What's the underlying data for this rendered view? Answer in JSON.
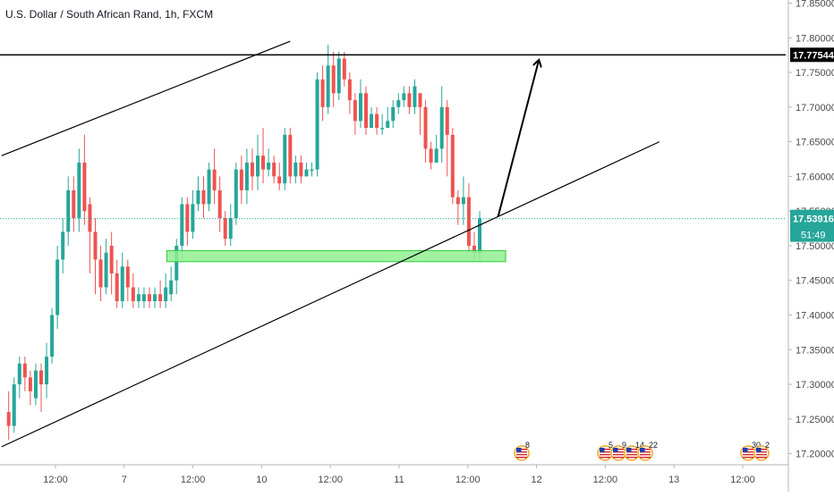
{
  "symbol": {
    "title": "U.S. Dollar / South African Rand, 1h, FXCM"
  },
  "colors": {
    "up": "#26a69a",
    "down": "#ef5350",
    "background": "#ffffff",
    "axis_text": "#4a4a4a",
    "trendline": "#000000",
    "zone_fill": "#90ee90",
    "zone_stroke": "#2ecc40",
    "price_line": "#26a69a",
    "resistance_label_bg": "#000000"
  },
  "price_axis": {
    "ticks": [
      "17.85000",
      "17.80000",
      "17.75000",
      "17.70000",
      "17.65000",
      "17.60000",
      "17.55000",
      "17.50000",
      "17.45000",
      "17.40000",
      "17.35000",
      "17.30000",
      "17.25000",
      "17.20000"
    ]
  },
  "time_axis": {
    "ticks": [
      "12:00",
      "7",
      "12:00",
      "10",
      "12:00",
      "11",
      "12:00",
      "12",
      "12:00",
      "13",
      "12:00"
    ]
  },
  "labels": {
    "resistance_price": "17.77544",
    "last_price": "17.53916",
    "countdown": "51:49"
  },
  "event_markers": [
    {
      "label": "8",
      "icon": "us-flag-event-icon"
    },
    {
      "label": "5",
      "icon": "us-flag-event-icon"
    },
    {
      "label": "9",
      "icon": "us-flag-event-icon"
    },
    {
      "label": "14",
      "icon": "us-flag-event-icon"
    },
    {
      "label": "22",
      "icon": "us-flag-event-icon"
    },
    {
      "label": "30",
      "icon": "us-flag-event-icon"
    },
    {
      "label": "2",
      "icon": "us-flag-event-icon"
    }
  ],
  "chart_data": {
    "type": "candlestick",
    "title": "U.S. Dollar / South African Rand, 1h, FXCM",
    "ylim": [
      17.19,
      17.855
    ],
    "y_scale": "linear",
    "grid": false,
    "legend": "none",
    "candles": [
      [
        17.26,
        17.24,
        17.29,
        17.22
      ],
      [
        17.24,
        17.3,
        17.31,
        17.23
      ],
      [
        17.3,
        17.33,
        17.34,
        17.28
      ],
      [
        17.33,
        17.31,
        17.34,
        17.29
      ],
      [
        17.31,
        17.29,
        17.32,
        17.27
      ],
      [
        17.28,
        17.32,
        17.33,
        17.27
      ],
      [
        17.32,
        17.3,
        17.33,
        17.26
      ],
      [
        17.3,
        17.34,
        17.36,
        17.28
      ],
      [
        17.34,
        17.4,
        17.41,
        17.33
      ],
      [
        17.4,
        17.48,
        17.5,
        17.38
      ],
      [
        17.48,
        17.52,
        17.54,
        17.46
      ],
      [
        17.52,
        17.58,
        17.6,
        17.5
      ],
      [
        17.58,
        17.54,
        17.6,
        17.52
      ],
      [
        17.54,
        17.62,
        17.64,
        17.52
      ],
      [
        17.62,
        17.55,
        17.66,
        17.53
      ],
      [
        17.56,
        17.52,
        17.57,
        17.46
      ],
      [
        17.52,
        17.48,
        17.54,
        17.43
      ],
      [
        17.48,
        17.44,
        17.5,
        17.42
      ],
      [
        17.44,
        17.49,
        17.51,
        17.43
      ],
      [
        17.5,
        17.46,
        17.52,
        17.43
      ],
      [
        17.46,
        17.42,
        17.48,
        17.41
      ],
      [
        17.42,
        17.47,
        17.49,
        17.41
      ],
      [
        17.47,
        17.44,
        17.48,
        17.42
      ],
      [
        17.44,
        17.42,
        17.46,
        17.41
      ],
      [
        17.42,
        17.43,
        17.44,
        17.41
      ],
      [
        17.42,
        17.43,
        17.44,
        17.41
      ],
      [
        17.43,
        17.42,
        17.44,
        17.41
      ],
      [
        17.42,
        17.43,
        17.44,
        17.41
      ],
      [
        17.43,
        17.42,
        17.45,
        17.41
      ],
      [
        17.42,
        17.44,
        17.46,
        17.41
      ],
      [
        17.43,
        17.45,
        17.47,
        17.42
      ],
      [
        17.45,
        17.5,
        17.51,
        17.43
      ],
      [
        17.5,
        17.56,
        17.57,
        17.48
      ],
      [
        17.56,
        17.52,
        17.57,
        17.5
      ],
      [
        17.52,
        17.56,
        17.58,
        17.51
      ],
      [
        17.56,
        17.58,
        17.6,
        17.55
      ],
      [
        17.58,
        17.56,
        17.6,
        17.54
      ],
      [
        17.56,
        17.61,
        17.62,
        17.55
      ],
      [
        17.61,
        17.58,
        17.64,
        17.56
      ],
      [
        17.58,
        17.54,
        17.6,
        17.52
      ],
      [
        17.54,
        17.51,
        17.55,
        17.5
      ],
      [
        17.51,
        17.54,
        17.56,
        17.5
      ],
      [
        17.54,
        17.61,
        17.62,
        17.53
      ],
      [
        17.61,
        17.58,
        17.63,
        17.56
      ],
      [
        17.58,
        17.62,
        17.64,
        17.56
      ],
      [
        17.62,
        17.6,
        17.64,
        17.58
      ],
      [
        17.6,
        17.63,
        17.66,
        17.58
      ],
      [
        17.63,
        17.61,
        17.67,
        17.59
      ],
      [
        17.61,
        17.62,
        17.64,
        17.6
      ],
      [
        17.62,
        17.6,
        17.63,
        17.59
      ],
      [
        17.6,
        17.59,
        17.62,
        17.58
      ],
      [
        17.59,
        17.66,
        17.67,
        17.58
      ],
      [
        17.66,
        17.6,
        17.67,
        17.59
      ],
      [
        17.6,
        17.62,
        17.63,
        17.59
      ],
      [
        17.62,
        17.6,
        17.63,
        17.59
      ],
      [
        17.6,
        17.61,
        17.62,
        17.6
      ],
      [
        17.61,
        17.61,
        17.62,
        17.6
      ],
      [
        17.61,
        17.74,
        17.75,
        17.6
      ],
      [
        17.74,
        17.7,
        17.76,
        17.68
      ],
      [
        17.7,
        17.76,
        17.79,
        17.69
      ],
      [
        17.76,
        17.72,
        17.78,
        17.7
      ],
      [
        17.72,
        17.77,
        17.78,
        17.71
      ],
      [
        17.77,
        17.74,
        17.78,
        17.73
      ],
      [
        17.74,
        17.71,
        17.75,
        17.69
      ],
      [
        17.71,
        17.68,
        17.72,
        17.66
      ],
      [
        17.68,
        17.72,
        17.74,
        17.67
      ],
      [
        17.72,
        17.67,
        17.73,
        17.66
      ],
      [
        17.67,
        17.69,
        17.7,
        17.67
      ],
      [
        17.69,
        17.67,
        17.7,
        17.66
      ],
      [
        17.67,
        17.67,
        17.69,
        17.66
      ],
      [
        17.67,
        17.68,
        17.7,
        17.67
      ],
      [
        17.68,
        17.7,
        17.71,
        17.67
      ],
      [
        17.7,
        17.71,
        17.72,
        17.69
      ],
      [
        17.71,
        17.72,
        17.73,
        17.7
      ],
      [
        17.72,
        17.7,
        17.73,
        17.69
      ],
      [
        17.7,
        17.73,
        17.74,
        17.69
      ],
      [
        17.72,
        17.7,
        17.72,
        17.66
      ],
      [
        17.7,
        17.64,
        17.71,
        17.62
      ],
      [
        17.64,
        17.62,
        17.65,
        17.61
      ],
      [
        17.62,
        17.64,
        17.66,
        17.62
      ],
      [
        17.64,
        17.7,
        17.73,
        17.62
      ],
      [
        17.7,
        17.66,
        17.71,
        17.6
      ],
      [
        17.66,
        17.57,
        17.67,
        17.56
      ],
      [
        17.57,
        17.56,
        17.58,
        17.53
      ],
      [
        17.56,
        17.57,
        17.6,
        17.53
      ],
      [
        17.57,
        17.5,
        17.59,
        17.49
      ],
      [
        17.5,
        17.49,
        17.52,
        17.48
      ],
      [
        17.49,
        17.54,
        17.55,
        17.48
      ]
    ],
    "last_price": 17.53916,
    "resistance_level": 17.77544,
    "annotations": [
      {
        "kind": "channel-upper-line",
        "from": [
          -1.3,
          17.63
        ],
        "to": [
          52.0,
          17.795
        ]
      },
      {
        "kind": "channel-lower-line",
        "from": [
          -1.3,
          17.21
        ],
        "to": [
          120.2,
          17.65
        ]
      },
      {
        "kind": "demand-zone",
        "x_from": 29.2,
        "x_to": 91.8,
        "y_from": 17.477,
        "y_to": 17.493
      },
      {
        "kind": "projection-arrow",
        "from": [
          90.4,
          17.542
        ],
        "to": [
          97.9,
          17.767
        ]
      }
    ]
  }
}
